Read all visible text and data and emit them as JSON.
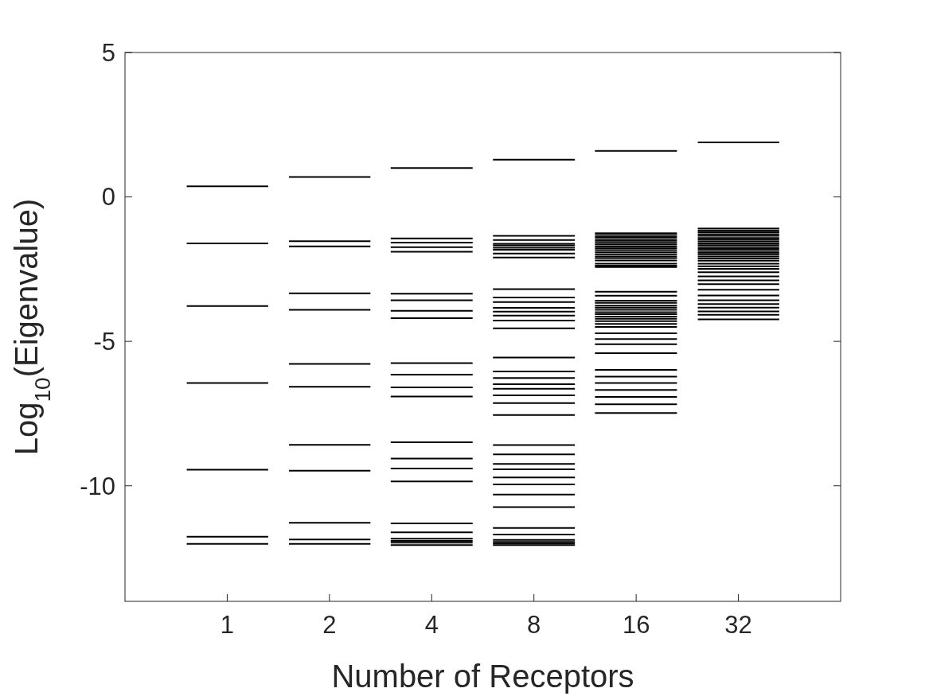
{
  "chart_data": {
    "type": "line",
    "xlabel": "Number of Receptors",
    "ylabel": "Log$_{10}$(Eigenvalue)",
    "log": "x",
    "xlim": [
      0.5,
      64
    ],
    "xticks": [
      1,
      2,
      4,
      8,
      16,
      32
    ],
    "ylim": [
      -14,
      5
    ],
    "yticks": [
      -10,
      -5,
      0,
      5
    ],
    "grid": false,
    "series": [
      {
        "color": "#000000",
        "x": [
          0.76,
          1.32
        ],
        "values": [
          0.37,
          0.37
        ]
      },
      {
        "color": "#000000",
        "x": [
          0.76,
          1.32
        ],
        "values": [
          -1.61,
          -1.61
        ]
      },
      {
        "color": "#000000",
        "x": [
          0.76,
          1.32
        ],
        "values": [
          -3.78,
          -3.78
        ]
      },
      {
        "color": "#000000",
        "x": [
          0.76,
          1.32
        ],
        "values": [
          -6.44,
          -6.44
        ]
      },
      {
        "color": "#000000",
        "x": [
          0.76,
          1.32
        ],
        "values": [
          -9.44,
          -9.44
        ]
      },
      {
        "color": "#000000",
        "x": [
          0.76,
          1.32
        ],
        "values": [
          -11.76,
          -11.76
        ]
      },
      {
        "color": "#000000",
        "x": [
          0.76,
          1.32
        ],
        "values": [
          -12.01,
          -12.01
        ]
      },
      {
        "color": "#000000",
        "x": [
          1.52,
          2.64
        ],
        "values": [
          0.69,
          0.69
        ]
      },
      {
        "color": "#000000",
        "x": [
          1.52,
          2.64
        ],
        "values": [
          -1.53,
          -1.53
        ]
      },
      {
        "color": "#000000",
        "x": [
          1.52,
          2.64
        ],
        "values": [
          -1.71,
          -1.71
        ]
      },
      {
        "color": "#000000",
        "x": [
          1.52,
          2.64
        ],
        "values": [
          -3.34,
          -3.34
        ]
      },
      {
        "color": "#000000",
        "x": [
          1.52,
          2.64
        ],
        "values": [
          -3.91,
          -3.91
        ]
      },
      {
        "color": "#000000",
        "x": [
          1.52,
          2.64
        ],
        "values": [
          -5.78,
          -5.78
        ]
      },
      {
        "color": "#000000",
        "x": [
          1.52,
          2.64
        ],
        "values": [
          -6.57,
          -6.57
        ]
      },
      {
        "color": "#000000",
        "x": [
          1.52,
          2.64
        ],
        "values": [
          -8.58,
          -8.58
        ]
      },
      {
        "color": "#000000",
        "x": [
          1.52,
          2.64
        ],
        "values": [
          -9.48,
          -9.48
        ]
      },
      {
        "color": "#000000",
        "x": [
          1.52,
          2.64
        ],
        "values": [
          -11.28,
          -11.28
        ]
      },
      {
        "color": "#000000",
        "x": [
          1.52,
          2.64
        ],
        "values": [
          -11.86,
          -11.86
        ]
      },
      {
        "color": "#000000",
        "x": [
          1.52,
          2.64
        ],
        "values": [
          -12.01,
          -12.01
        ]
      },
      {
        "color": "#000000",
        "x": [
          3.03,
          5.28
        ],
        "values": [
          1.0,
          1.0
        ]
      },
      {
        "color": "#000000",
        "x": [
          3.03,
          5.28
        ],
        "values": [
          -1.44,
          -1.44
        ]
      },
      {
        "color": "#000000",
        "x": [
          3.03,
          5.28
        ],
        "values": [
          -1.58,
          -1.58
        ]
      },
      {
        "color": "#000000",
        "x": [
          3.03,
          5.28
        ],
        "values": [
          -1.74,
          -1.74
        ]
      },
      {
        "color": "#000000",
        "x": [
          3.03,
          5.28
        ],
        "values": [
          -1.9,
          -1.9
        ]
      },
      {
        "color": "#000000",
        "x": [
          3.03,
          5.28
        ],
        "values": [
          -3.35,
          -3.35
        ]
      },
      {
        "color": "#000000",
        "x": [
          3.03,
          5.28
        ],
        "values": [
          -3.58,
          -3.58
        ]
      },
      {
        "color": "#000000",
        "x": [
          3.03,
          5.28
        ],
        "values": [
          -3.94,
          -3.94
        ]
      },
      {
        "color": "#000000",
        "x": [
          3.03,
          5.28
        ],
        "values": [
          -4.2,
          -4.2
        ]
      },
      {
        "color": "#000000",
        "x": [
          3.03,
          5.28
        ],
        "values": [
          -5.75,
          -5.75
        ]
      },
      {
        "color": "#000000",
        "x": [
          3.03,
          5.28
        ],
        "values": [
          -6.15,
          -6.15
        ]
      },
      {
        "color": "#000000",
        "x": [
          3.03,
          5.28
        ],
        "values": [
          -6.59,
          -6.59
        ]
      },
      {
        "color": "#000000",
        "x": [
          3.03,
          5.28
        ],
        "values": [
          -6.91,
          -6.91
        ]
      },
      {
        "color": "#000000",
        "x": [
          3.03,
          5.28
        ],
        "values": [
          -8.49,
          -8.49
        ]
      },
      {
        "color": "#000000",
        "x": [
          3.03,
          5.28
        ],
        "values": [
          -9.06,
          -9.06
        ]
      },
      {
        "color": "#000000",
        "x": [
          3.03,
          5.28
        ],
        "values": [
          -9.4,
          -9.4
        ]
      },
      {
        "color": "#000000",
        "x": [
          3.03,
          5.28
        ],
        "values": [
          -9.85,
          -9.85
        ]
      },
      {
        "color": "#000000",
        "x": [
          3.03,
          5.28
        ],
        "values": [
          -11.3,
          -11.3
        ]
      },
      {
        "color": "#000000",
        "x": [
          3.03,
          5.28
        ],
        "values": [
          -11.61,
          -11.61
        ]
      },
      {
        "color": "#000000",
        "x": [
          3.03,
          5.28
        ],
        "values": [
          -11.83,
          -11.83
        ]
      },
      {
        "color": "#000000",
        "x": [
          3.03,
          5.28
        ],
        "values": [
          -11.91,
          -11.91
        ]
      },
      {
        "color": "#000000",
        "x": [
          3.03,
          5.28
        ],
        "values": [
          -11.97,
          -11.97
        ]
      },
      {
        "color": "#000000",
        "x": [
          3.03,
          5.28
        ],
        "values": [
          -12.05,
          -12.05
        ]
      },
      {
        "color": "#000000",
        "x": [
          6.06,
          10.56
        ],
        "values": [
          1.29,
          1.29
        ]
      },
      {
        "color": "#000000",
        "x": [
          6.06,
          10.56
        ],
        "values": [
          -1.35,
          -1.35
        ]
      },
      {
        "color": "#000000",
        "x": [
          6.06,
          10.56
        ],
        "values": [
          -1.49,
          -1.49
        ]
      },
      {
        "color": "#000000",
        "x": [
          6.06,
          10.56
        ],
        "values": [
          -1.62,
          -1.62
        ]
      },
      {
        "color": "#000000",
        "x": [
          6.06,
          10.56
        ],
        "values": [
          -1.68,
          -1.68
        ]
      },
      {
        "color": "#000000",
        "x": [
          6.06,
          10.56
        ],
        "values": [
          -1.76,
          -1.76
        ]
      },
      {
        "color": "#000000",
        "x": [
          6.06,
          10.56
        ],
        "values": [
          -1.83,
          -1.83
        ]
      },
      {
        "color": "#000000",
        "x": [
          6.06,
          10.56
        ],
        "values": [
          -1.96,
          -1.96
        ]
      },
      {
        "color": "#000000",
        "x": [
          6.06,
          10.56
        ],
        "values": [
          -2.1,
          -2.1
        ]
      },
      {
        "color": "#000000",
        "x": [
          6.06,
          10.56
        ],
        "values": [
          -3.19,
          -3.19
        ]
      },
      {
        "color": "#000000",
        "x": [
          6.06,
          10.56
        ],
        "values": [
          -3.48,
          -3.48
        ]
      },
      {
        "color": "#000000",
        "x": [
          6.06,
          10.56
        ],
        "values": [
          -3.64,
          -3.64
        ]
      },
      {
        "color": "#000000",
        "x": [
          6.06,
          10.56
        ],
        "values": [
          -3.84,
          -3.84
        ]
      },
      {
        "color": "#000000",
        "x": [
          6.06,
          10.56
        ],
        "values": [
          -3.97,
          -3.97
        ]
      },
      {
        "color": "#000000",
        "x": [
          6.06,
          10.56
        ],
        "values": [
          -4.11,
          -4.11
        ]
      },
      {
        "color": "#000000",
        "x": [
          6.06,
          10.56
        ],
        "values": [
          -4.28,
          -4.28
        ]
      },
      {
        "color": "#000000",
        "x": [
          6.06,
          10.56
        ],
        "values": [
          -4.55,
          -4.55
        ]
      },
      {
        "color": "#000000",
        "x": [
          6.06,
          10.56
        ],
        "values": [
          -5.56,
          -5.56
        ]
      },
      {
        "color": "#000000",
        "x": [
          6.06,
          10.56
        ],
        "values": [
          -6.04,
          -6.04
        ]
      },
      {
        "color": "#000000",
        "x": [
          6.06,
          10.56
        ],
        "values": [
          -6.27,
          -6.27
        ]
      },
      {
        "color": "#000000",
        "x": [
          6.06,
          10.56
        ],
        "values": [
          -6.48,
          -6.48
        ]
      },
      {
        "color": "#000000",
        "x": [
          6.06,
          10.56
        ],
        "values": [
          -6.64,
          -6.64
        ]
      },
      {
        "color": "#000000",
        "x": [
          6.06,
          10.56
        ],
        "values": [
          -6.87,
          -6.87
        ]
      },
      {
        "color": "#000000",
        "x": [
          6.06,
          10.56
        ],
        "values": [
          -7.14,
          -7.14
        ]
      },
      {
        "color": "#000000",
        "x": [
          6.06,
          10.56
        ],
        "values": [
          -7.55,
          -7.55
        ]
      },
      {
        "color": "#000000",
        "x": [
          6.06,
          10.56
        ],
        "values": [
          -8.59,
          -8.59
        ]
      },
      {
        "color": "#000000",
        "x": [
          6.06,
          10.56
        ],
        "values": [
          -8.91,
          -8.91
        ]
      },
      {
        "color": "#000000",
        "x": [
          6.06,
          10.56
        ],
        "values": [
          -9.24,
          -9.24
        ]
      },
      {
        "color": "#000000",
        "x": [
          6.06,
          10.56
        ],
        "values": [
          -9.43,
          -9.43
        ]
      },
      {
        "color": "#000000",
        "x": [
          6.06,
          10.56
        ],
        "values": [
          -9.71,
          -9.71
        ]
      },
      {
        "color": "#000000",
        "x": [
          6.06,
          10.56
        ],
        "values": [
          -9.95,
          -9.95
        ]
      },
      {
        "color": "#000000",
        "x": [
          6.06,
          10.56
        ],
        "values": [
          -10.3,
          -10.3
        ]
      },
      {
        "color": "#000000",
        "x": [
          6.06,
          10.56
        ],
        "values": [
          -10.74,
          -10.74
        ]
      },
      {
        "color": "#000000",
        "x": [
          6.06,
          10.56
        ],
        "values": [
          -11.46,
          -11.46
        ]
      },
      {
        "color": "#000000",
        "x": [
          6.06,
          10.56
        ],
        "values": [
          -11.69,
          -11.69
        ]
      },
      {
        "color": "#000000",
        "x": [
          6.06,
          10.56
        ],
        "values": [
          -11.87,
          -11.87
        ]
      },
      {
        "color": "#000000",
        "x": [
          6.06,
          10.56
        ],
        "values": [
          -11.94,
          -11.94
        ]
      },
      {
        "color": "#000000",
        "x": [
          6.06,
          10.56
        ],
        "values": [
          -12.0,
          -12.0
        ]
      },
      {
        "color": "#000000",
        "x": [
          6.06,
          10.56
        ],
        "values": [
          -12.05,
          -12.05
        ]
      },
      {
        "color": "#000000",
        "x": [
          12.1,
          21.1
        ],
        "values": [
          1.59,
          1.59
        ]
      },
      {
        "color": "#000000",
        "x": [
          12.1,
          21.1
        ],
        "values": [
          -1.26,
          -1.26
        ]
      },
      {
        "color": "#000000",
        "x": [
          12.1,
          21.1
        ],
        "values": [
          -1.32,
          -1.32
        ]
      },
      {
        "color": "#000000",
        "x": [
          12.1,
          21.1
        ],
        "values": [
          -1.39,
          -1.39
        ]
      },
      {
        "color": "#000000",
        "x": [
          12.1,
          21.1
        ],
        "values": [
          -1.46,
          -1.46
        ]
      },
      {
        "color": "#000000",
        "x": [
          12.1,
          21.1
        ],
        "values": [
          -1.52,
          -1.52
        ]
      },
      {
        "color": "#000000",
        "x": [
          12.1,
          21.1
        ],
        "values": [
          -1.59,
          -1.59
        ]
      },
      {
        "color": "#000000",
        "x": [
          12.1,
          21.1
        ],
        "values": [
          -1.65,
          -1.65
        ]
      },
      {
        "color": "#000000",
        "x": [
          12.1,
          21.1
        ],
        "values": [
          -1.72,
          -1.72
        ]
      },
      {
        "color": "#000000",
        "x": [
          12.1,
          21.1
        ],
        "values": [
          -1.78,
          -1.78
        ]
      },
      {
        "color": "#000000",
        "x": [
          12.1,
          21.1
        ],
        "values": [
          -1.84,
          -1.84
        ]
      },
      {
        "color": "#000000",
        "x": [
          12.1,
          21.1
        ],
        "values": [
          -1.92,
          -1.92
        ]
      },
      {
        "color": "#000000",
        "x": [
          12.1,
          21.1
        ],
        "values": [
          -1.99,
          -1.99
        ]
      },
      {
        "color": "#000000",
        "x": [
          12.1,
          21.1
        ],
        "values": [
          -2.06,
          -2.06
        ]
      },
      {
        "color": "#000000",
        "x": [
          12.1,
          21.1
        ],
        "values": [
          -2.12,
          -2.12
        ]
      },
      {
        "color": "#000000",
        "x": [
          12.1,
          21.1
        ],
        "values": [
          -2.2,
          -2.2
        ]
      },
      {
        "color": "#000000",
        "x": [
          12.1,
          21.1
        ],
        "values": [
          -2.31,
          -2.31
        ]
      },
      {
        "color": "#000000",
        "x": [
          12.1,
          21.1
        ],
        "values": [
          -2.38,
          -2.38
        ]
      },
      {
        "color": "#000000",
        "x": [
          12.1,
          21.1
        ],
        "values": [
          -2.43,
          -2.43
        ]
      },
      {
        "color": "#000000",
        "x": [
          12.1,
          21.1
        ],
        "values": [
          -3.28,
          -3.28
        ]
      },
      {
        "color": "#000000",
        "x": [
          12.1,
          21.1
        ],
        "values": [
          -3.42,
          -3.42
        ]
      },
      {
        "color": "#000000",
        "x": [
          12.1,
          21.1
        ],
        "values": [
          -3.59,
          -3.59
        ]
      },
      {
        "color": "#000000",
        "x": [
          12.1,
          21.1
        ],
        "values": [
          -3.67,
          -3.67
        ]
      },
      {
        "color": "#000000",
        "x": [
          12.1,
          21.1
        ],
        "values": [
          -3.76,
          -3.76
        ]
      },
      {
        "color": "#000000",
        "x": [
          12.1,
          21.1
        ],
        "values": [
          -3.83,
          -3.83
        ]
      },
      {
        "color": "#000000",
        "x": [
          12.1,
          21.1
        ],
        "values": [
          -3.91,
          -3.91
        ]
      },
      {
        "color": "#000000",
        "x": [
          12.1,
          21.1
        ],
        "values": [
          -3.99,
          -3.99
        ]
      },
      {
        "color": "#000000",
        "x": [
          12.1,
          21.1
        ],
        "values": [
          -4.06,
          -4.06
        ]
      },
      {
        "color": "#000000",
        "x": [
          12.1,
          21.1
        ],
        "values": [
          -4.14,
          -4.14
        ]
      },
      {
        "color": "#000000",
        "x": [
          12.1,
          21.1
        ],
        "values": [
          -4.22,
          -4.22
        ]
      },
      {
        "color": "#000000",
        "x": [
          12.1,
          21.1
        ],
        "values": [
          -4.3,
          -4.3
        ]
      },
      {
        "color": "#000000",
        "x": [
          12.1,
          21.1
        ],
        "values": [
          -4.4,
          -4.4
        ]
      },
      {
        "color": "#000000",
        "x": [
          12.1,
          21.1
        ],
        "values": [
          -4.5,
          -4.5
        ]
      },
      {
        "color": "#000000",
        "x": [
          12.1,
          21.1
        ],
        "values": [
          -4.72,
          -4.72
        ]
      },
      {
        "color": "#000000",
        "x": [
          12.1,
          21.1
        ],
        "values": [
          -4.92,
          -4.92
        ]
      },
      {
        "color": "#000000",
        "x": [
          12.1,
          21.1
        ],
        "values": [
          -5.1,
          -5.1
        ]
      },
      {
        "color": "#000000",
        "x": [
          12.1,
          21.1
        ],
        "values": [
          -5.41,
          -5.41
        ]
      },
      {
        "color": "#000000",
        "x": [
          12.1,
          21.1
        ],
        "values": [
          -5.99,
          -5.99
        ]
      },
      {
        "color": "#000000",
        "x": [
          12.1,
          21.1
        ],
        "values": [
          -6.22,
          -6.22
        ]
      },
      {
        "color": "#000000",
        "x": [
          12.1,
          21.1
        ],
        "values": [
          -6.44,
          -6.44
        ]
      },
      {
        "color": "#000000",
        "x": [
          12.1,
          21.1
        ],
        "values": [
          -6.68,
          -6.68
        ]
      },
      {
        "color": "#000000",
        "x": [
          12.1,
          21.1
        ],
        "values": [
          -6.92,
          -6.92
        ]
      },
      {
        "color": "#000000",
        "x": [
          12.1,
          21.1
        ],
        "values": [
          -7.18,
          -7.18
        ]
      },
      {
        "color": "#000000",
        "x": [
          12.1,
          21.1
        ],
        "values": [
          -7.48,
          -7.48
        ]
      },
      {
        "color": "#000000",
        "x": [
          24.3,
          42.2
        ],
        "values": [
          1.89,
          1.89
        ]
      },
      {
        "color": "#000000",
        "x": [
          24.3,
          42.2
        ],
        "values": [
          -1.09,
          -1.09
        ]
      },
      {
        "color": "#000000",
        "x": [
          24.3,
          42.2
        ],
        "values": [
          -1.16,
          -1.16
        ]
      },
      {
        "color": "#000000",
        "x": [
          24.3,
          42.2
        ],
        "values": [
          -1.22,
          -1.22
        ]
      },
      {
        "color": "#000000",
        "x": [
          24.3,
          42.2
        ],
        "values": [
          -1.29,
          -1.29
        ]
      },
      {
        "color": "#000000",
        "x": [
          24.3,
          42.2
        ],
        "values": [
          -1.35,
          -1.35
        ]
      },
      {
        "color": "#000000",
        "x": [
          24.3,
          42.2
        ],
        "values": [
          -1.42,
          -1.42
        ]
      },
      {
        "color": "#000000",
        "x": [
          24.3,
          42.2
        ],
        "values": [
          -1.48,
          -1.48
        ]
      },
      {
        "color": "#000000",
        "x": [
          24.3,
          42.2
        ],
        "values": [
          -1.54,
          -1.54
        ]
      },
      {
        "color": "#000000",
        "x": [
          24.3,
          42.2
        ],
        "values": [
          -1.61,
          -1.61
        ]
      },
      {
        "color": "#000000",
        "x": [
          24.3,
          42.2
        ],
        "values": [
          -1.67,
          -1.67
        ]
      },
      {
        "color": "#000000",
        "x": [
          24.3,
          42.2
        ],
        "values": [
          -1.74,
          -1.74
        ]
      },
      {
        "color": "#000000",
        "x": [
          24.3,
          42.2
        ],
        "values": [
          -1.8,
          -1.8
        ]
      },
      {
        "color": "#000000",
        "x": [
          24.3,
          42.2
        ],
        "values": [
          -1.87,
          -1.87
        ]
      },
      {
        "color": "#000000",
        "x": [
          24.3,
          42.2
        ],
        "values": [
          -1.93,
          -1.93
        ]
      },
      {
        "color": "#000000",
        "x": [
          24.3,
          42.2
        ],
        "values": [
          -1.99,
          -1.99
        ]
      },
      {
        "color": "#000000",
        "x": [
          24.3,
          42.2
        ],
        "values": [
          -2.06,
          -2.06
        ]
      },
      {
        "color": "#000000",
        "x": [
          24.3,
          42.2
        ],
        "values": [
          -2.13,
          -2.13
        ]
      },
      {
        "color": "#000000",
        "x": [
          24.3,
          42.2
        ],
        "values": [
          -2.21,
          -2.21
        ]
      },
      {
        "color": "#000000",
        "x": [
          24.3,
          42.2
        ],
        "values": [
          -2.31,
          -2.31
        ]
      },
      {
        "color": "#000000",
        "x": [
          24.3,
          42.2
        ],
        "values": [
          -2.4,
          -2.4
        ]
      },
      {
        "color": "#000000",
        "x": [
          24.3,
          42.2
        ],
        "values": [
          -2.49,
          -2.49
        ]
      },
      {
        "color": "#000000",
        "x": [
          24.3,
          42.2
        ],
        "values": [
          -2.61,
          -2.61
        ]
      },
      {
        "color": "#000000",
        "x": [
          24.3,
          42.2
        ],
        "values": [
          -2.75,
          -2.75
        ]
      },
      {
        "color": "#000000",
        "x": [
          24.3,
          42.2
        ],
        "values": [
          -2.89,
          -2.89
        ]
      },
      {
        "color": "#000000",
        "x": [
          24.3,
          42.2
        ],
        "values": [
          -3.02,
          -3.02
        ]
      },
      {
        "color": "#000000",
        "x": [
          24.3,
          42.2
        ],
        "values": [
          -3.21,
          -3.21
        ]
      },
      {
        "color": "#000000",
        "x": [
          24.3,
          42.2
        ],
        "values": [
          -3.41,
          -3.41
        ]
      },
      {
        "color": "#000000",
        "x": [
          24.3,
          42.2
        ],
        "values": [
          -3.58,
          -3.58
        ]
      },
      {
        "color": "#000000",
        "x": [
          24.3,
          42.2
        ],
        "values": [
          -3.71,
          -3.71
        ]
      },
      {
        "color": "#000000",
        "x": [
          24.3,
          42.2
        ],
        "values": [
          -3.83,
          -3.83
        ]
      },
      {
        "color": "#000000",
        "x": [
          24.3,
          42.2
        ],
        "values": [
          -3.96,
          -3.96
        ]
      },
      {
        "color": "#000000",
        "x": [
          24.3,
          42.2
        ],
        "values": [
          -4.08,
          -4.08
        ]
      },
      {
        "color": "#000000",
        "x": [
          24.3,
          42.2
        ],
        "values": [
          -4.24,
          -4.24
        ]
      }
    ]
  }
}
